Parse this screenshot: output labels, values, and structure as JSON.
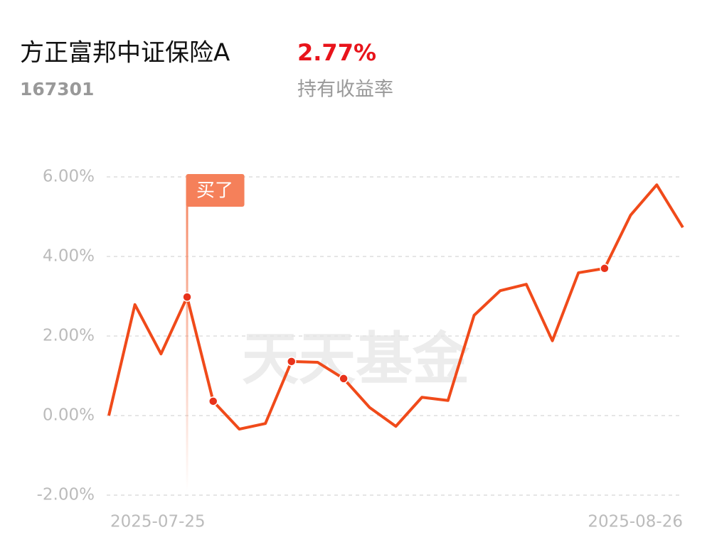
{
  "header": {
    "title": "方正富邦中证保险A",
    "code": "167301",
    "return_value": "2.77%",
    "return_label": "持有收益率"
  },
  "chart_data": {
    "type": "line",
    "categories": [
      "2025-07-25",
      null,
      null,
      null,
      null,
      null,
      null,
      null,
      null,
      null,
      null,
      null,
      null,
      null,
      null,
      null,
      null,
      null,
      null,
      null,
      null,
      null,
      "2025-08-26"
    ],
    "series": [
      {
        "color": "#f04a1a",
        "values": [
          0.0,
          2.79,
          1.55,
          2.98,
          0.36,
          -0.34,
          -0.2,
          1.36,
          1.34,
          0.93,
          0.2,
          -0.27,
          0.46,
          0.38,
          2.52,
          3.14,
          3.3,
          1.88,
          3.59,
          3.7,
          5.04,
          5.8,
          4.73
        ]
      }
    ],
    "marker_indices": [
      3,
      4,
      7,
      9,
      19
    ],
    "annotation": {
      "text": "买了",
      "index": 3
    },
    "watermark": "天天基金",
    "ylim": [
      -2,
      6
    ],
    "yticks": [
      {
        "value": -2,
        "label": "-2.00%"
      },
      {
        "value": 0,
        "label": "0.00%"
      },
      {
        "value": 2,
        "label": "2.00%"
      },
      {
        "value": 4,
        "label": "4.00%"
      },
      {
        "value": 6,
        "label": "6.00%"
      }
    ],
    "grid": true
  }
}
